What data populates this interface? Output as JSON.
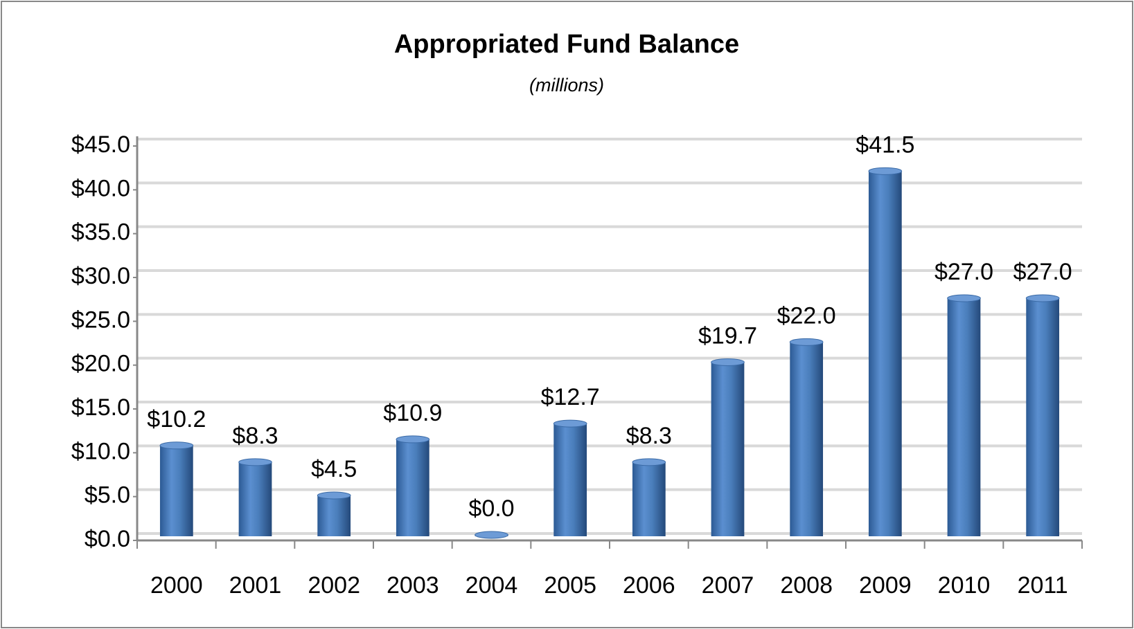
{
  "chart_data": {
    "type": "bar",
    "title": "Appropriated Fund Balance",
    "subtitle": "(millions)",
    "categories": [
      "2000",
      "2001",
      "2002",
      "2003",
      "2004",
      "2005",
      "2006",
      "2007",
      "2008",
      "2009",
      "2010",
      "2011"
    ],
    "values": [
      10.2,
      8.3,
      4.5,
      10.9,
      0.0,
      12.7,
      8.3,
      19.7,
      22.0,
      41.5,
      27.0,
      27.0
    ],
    "value_labels": [
      "$10.2",
      "$8.3",
      "$4.5",
      "$10.9",
      "$0.0",
      "$12.7",
      "$8.3",
      "$19.7",
      "$22.0",
      "$41.5",
      "$27.0",
      "$27.0"
    ],
    "color": "#4a7ebb",
    "ylim": [
      0,
      45
    ],
    "yticks": [
      {
        "value": 0,
        "label": "$0.0"
      },
      {
        "value": 5,
        "label": "$5.0"
      },
      {
        "value": 10,
        "label": "$10.0"
      },
      {
        "value": 15,
        "label": "$15.0"
      },
      {
        "value": 20,
        "label": "$20.0"
      },
      {
        "value": 25,
        "label": "$25.0"
      },
      {
        "value": 30,
        "label": "$30.0"
      },
      {
        "value": 35,
        "label": "$35.0"
      },
      {
        "value": 40,
        "label": "$40.0"
      },
      {
        "value": 45,
        "label": "$45.0"
      }
    ],
    "grid": true
  }
}
